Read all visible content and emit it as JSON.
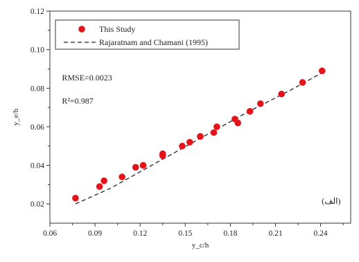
{
  "chart_data": {
    "type": "scatter",
    "xlabel": "y_c/h",
    "ylabel": "y_e/h",
    "xlim": [
      0.06,
      0.26
    ],
    "ylim": [
      0.01,
      0.12
    ],
    "xticks": [
      "0.06",
      "0.09",
      "0.12",
      "0.15",
      "0.18",
      "0.21",
      "0.24"
    ],
    "yticks": [
      "0.02",
      "0.04",
      "0.06",
      "0.08",
      "0.10",
      "0.12"
    ],
    "grid": false,
    "legend_position": "top-left",
    "series": [
      {
        "name": "This Study",
        "kind": "scatter",
        "color": "#e3141b",
        "x": [
          0.077,
          0.093,
          0.096,
          0.108,
          0.117,
          0.122,
          0.135,
          0.135,
          0.148,
          0.153,
          0.16,
          0.169,
          0.171,
          0.183,
          0.185,
          0.193,
          0.2,
          0.214,
          0.228,
          0.241
        ],
        "y": [
          0.023,
          0.029,
          0.032,
          0.034,
          0.039,
          0.04,
          0.045,
          0.046,
          0.05,
          0.052,
          0.055,
          0.057,
          0.06,
          0.064,
          0.062,
          0.068,
          0.072,
          0.077,
          0.083,
          0.089
        ]
      },
      {
        "name": "Rajaratnam and Chamani (1995)",
        "kind": "line",
        "color": "#222222",
        "dash": "dashed",
        "x": [
          0.077,
          0.1,
          0.13,
          0.16,
          0.19,
          0.22,
          0.241
        ],
        "y": [
          0.02,
          0.028,
          0.041,
          0.054,
          0.067,
          0.079,
          0.088
        ]
      }
    ],
    "annotations": [
      {
        "text": "RMSE=0.0023",
        "x": 0.068,
        "y": 0.084
      },
      {
        "text": "R²=0.987",
        "x": 0.068,
        "y": 0.072
      },
      {
        "text": "(الف)",
        "x": 0.247,
        "y": 0.02
      }
    ]
  }
}
